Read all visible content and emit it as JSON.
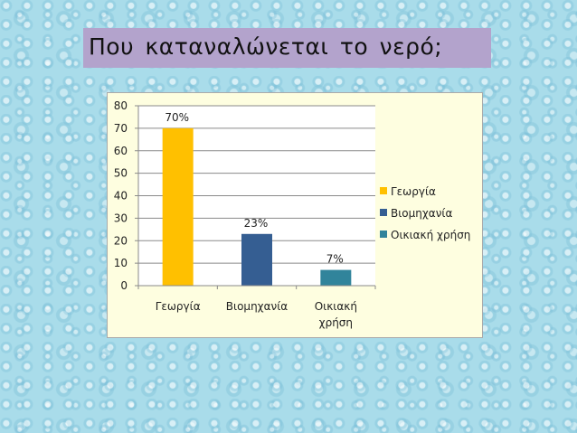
{
  "slide": {
    "title": "Που καταναλώνεται το νερό;"
  },
  "chart_data": {
    "type": "bar",
    "categories": [
      "Γεωργία",
      "Βιομηχανία",
      "Οικιακή χρήση"
    ],
    "category_lines": [
      [
        "Γεωργία"
      ],
      [
        "Βιομηχανία"
      ],
      [
        "Οικιακή",
        "χρήση"
      ]
    ],
    "values": [
      70,
      23,
      7
    ],
    "data_labels": [
      "70%",
      "23%",
      "7%"
    ],
    "colors": [
      "#ffc000",
      "#355e92",
      "#31849b"
    ],
    "ylim": [
      0,
      80
    ],
    "yticks": [
      0,
      10,
      20,
      30,
      40,
      50,
      60,
      70,
      80
    ],
    "grid": true,
    "legend_position": "right",
    "legend": [
      "Γεωργία",
      "Βιομηχανία",
      "Οικιακή χρήση"
    ],
    "plot_background": "#ffffff",
    "panel_background": "#fefee0"
  }
}
